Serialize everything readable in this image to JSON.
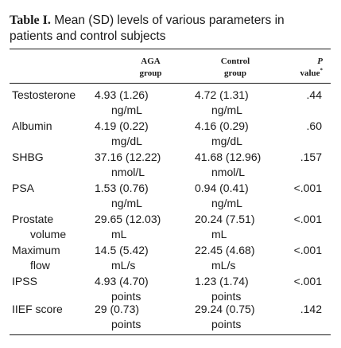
{
  "table": {
    "label": "Table I.",
    "title": "Mean (SD) levels of various parameters in patients and control subjects",
    "headers": {
      "aga_line1": "AGA",
      "aga_line2": "group",
      "control_line1": "Control",
      "control_line2": "group",
      "p_line1": "P",
      "p_line2": "value",
      "p_footnote_mark": "*"
    },
    "rows": [
      {
        "param_line1": "Testosterone",
        "param_line2": "",
        "aga_value": "4.93 (1.26)",
        "aga_unit": "ng/mL",
        "control_value": "4.72 (1.31)",
        "control_unit": "ng/mL",
        "p_value": ".44"
      },
      {
        "param_line1": "Albumin",
        "param_line2": "",
        "aga_value": "4.19 (0.22)",
        "aga_unit": "mg/dL",
        "control_value": "4.16 (0.29)",
        "control_unit": "mg/dL",
        "p_value": ".60"
      },
      {
        "param_line1": "SHBG",
        "param_line2": "",
        "aga_value": "37.16 (12.22)",
        "aga_unit": "nmol/L",
        "control_value": "41.68 (12.96)",
        "control_unit": "nmol/L",
        "p_value": ".157"
      },
      {
        "param_line1": "PSA",
        "param_line2": "",
        "aga_value": "1.53 (0.76)",
        "aga_unit": "ng/mL",
        "control_value": "0.94 (0.41)",
        "control_unit": "ng/mL",
        "p_value": "<.001"
      },
      {
        "param_line1": "Prostate",
        "param_line2": "volume",
        "aga_value": "29.65 (12.03)",
        "aga_unit": "mL",
        "control_value": "20.24 (7.51)",
        "control_unit": "mL",
        "p_value": "<.001"
      },
      {
        "param_line1": "Maximum",
        "param_line2": "flow",
        "aga_value": "14.5 (5.42)",
        "aga_unit": "mL/s",
        "control_value": "22.45 (4.68)",
        "control_unit": "mL/s",
        "p_value": "<.001"
      },
      {
        "param_line1": "IPSS",
        "param_line2": "",
        "aga_value": "4.93 (4.70)",
        "aga_unit": "points",
        "control_value": "1.23 (1.74)",
        "control_unit": "points",
        "p_value": "<.001"
      },
      {
        "param_line1": "IIEF score",
        "param_line2": "",
        "aga_value": "29 (0.73)",
        "aga_unit": "points",
        "control_value": "29.24 (0.75)",
        "control_unit": "points",
        "p_value": ".142"
      }
    ]
  }
}
